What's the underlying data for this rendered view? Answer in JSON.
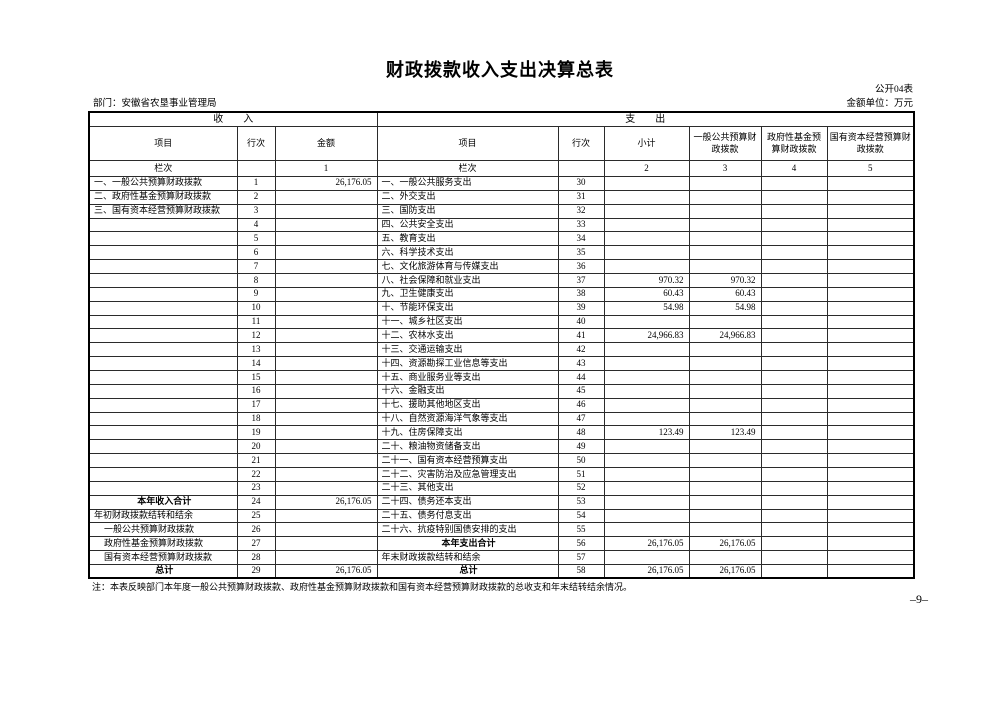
{
  "title": "财政拨款收入支出决算总表",
  "meta": {
    "sheet_label": "公开04表",
    "department": "部门：安徽省农垦事业管理局",
    "unit": "金额单位：万元"
  },
  "table": {
    "income_banner": "收　　入",
    "expense_banner": "支　　出",
    "headers": {
      "item": "项目",
      "line_no": "行次",
      "amount": "金额",
      "subtotal": "小计",
      "general_budget": "一般公共预算财政拨款",
      "gov_fund": "政府性基金预算财政拨款",
      "state_capital": "国有资本经营预算财政拨款"
    },
    "col_index_label": "栏次",
    "col_indices": [
      "1",
      "2",
      "3",
      "4",
      "5"
    ],
    "rows": [
      {
        "l": "一、一般公共预算财政拨款",
        "ln": "1",
        "la": "26,176.05",
        "r": "一、一般公共服务支出",
        "rn": "30",
        "s": "",
        "g": ""
      },
      {
        "l": "二、政府性基金预算财政拨款",
        "ln": "2",
        "la": "",
        "r": "二、外交支出",
        "rn": "31",
        "s": "",
        "g": ""
      },
      {
        "l": "三、国有资本经营预算财政拨款",
        "ln": "3",
        "la": "",
        "r": "三、国防支出",
        "rn": "32",
        "s": "",
        "g": ""
      },
      {
        "l": "",
        "ln": "4",
        "la": "",
        "r": "四、公共安全支出",
        "rn": "33",
        "s": "",
        "g": ""
      },
      {
        "l": "",
        "ln": "5",
        "la": "",
        "r": "五、教育支出",
        "rn": "34",
        "s": "",
        "g": ""
      },
      {
        "l": "",
        "ln": "6",
        "la": "",
        "r": "六、科学技术支出",
        "rn": "35",
        "s": "",
        "g": ""
      },
      {
        "l": "",
        "ln": "7",
        "la": "",
        "r": "七、文化旅游体育与传媒支出",
        "rn": "36",
        "s": "",
        "g": ""
      },
      {
        "l": "",
        "ln": "8",
        "la": "",
        "r": "八、社会保障和就业支出",
        "rn": "37",
        "s": "970.32",
        "g": "970.32"
      },
      {
        "l": "",
        "ln": "9",
        "la": "",
        "r": "九、卫生健康支出",
        "rn": "38",
        "s": "60.43",
        "g": "60.43"
      },
      {
        "l": "",
        "ln": "10",
        "la": "",
        "r": "十、节能环保支出",
        "rn": "39",
        "s": "54.98",
        "g": "54.98"
      },
      {
        "l": "",
        "ln": "11",
        "la": "",
        "r": "十一、城乡社区支出",
        "rn": "40",
        "s": "",
        "g": ""
      },
      {
        "l": "",
        "ln": "12",
        "la": "",
        "r": "十二、农林水支出",
        "rn": "41",
        "s": "24,966.83",
        "g": "24,966.83"
      },
      {
        "l": "",
        "ln": "13",
        "la": "",
        "r": "十三、交通运输支出",
        "rn": "42",
        "s": "",
        "g": ""
      },
      {
        "l": "",
        "ln": "14",
        "la": "",
        "r": "十四、资源勘探工业信息等支出",
        "rn": "43",
        "s": "",
        "g": ""
      },
      {
        "l": "",
        "ln": "15",
        "la": "",
        "r": "十五、商业服务业等支出",
        "rn": "44",
        "s": "",
        "g": ""
      },
      {
        "l": "",
        "ln": "16",
        "la": "",
        "r": "十六、金融支出",
        "rn": "45",
        "s": "",
        "g": ""
      },
      {
        "l": "",
        "ln": "17",
        "la": "",
        "r": "十七、援助其他地区支出",
        "rn": "46",
        "s": "",
        "g": ""
      },
      {
        "l": "",
        "ln": "18",
        "la": "",
        "r": "十八、自然资源海洋气象等支出",
        "rn": "47",
        "s": "",
        "g": ""
      },
      {
        "l": "",
        "ln": "19",
        "la": "",
        "r": "十九、住房保障支出",
        "rn": "48",
        "s": "123.49",
        "g": "123.49"
      },
      {
        "l": "",
        "ln": "20",
        "la": "",
        "r": "二十、粮油物资储备支出",
        "rn": "49",
        "s": "",
        "g": ""
      },
      {
        "l": "",
        "ln": "21",
        "la": "",
        "r": "二十一、国有资本经营预算支出",
        "rn": "50",
        "s": "",
        "g": ""
      },
      {
        "l": "",
        "ln": "22",
        "la": "",
        "r": "二十二、灾害防治及应急管理支出",
        "rn": "51",
        "s": "",
        "g": ""
      },
      {
        "l": "",
        "ln": "23",
        "la": "",
        "r": "二十三、其他支出",
        "rn": "52",
        "s": "",
        "g": ""
      },
      {
        "l": "本年收入合计",
        "lc": "total",
        "ln": "24",
        "la": "26,176.05",
        "r": "二十四、债务还本支出",
        "rn": "53",
        "s": "",
        "g": ""
      },
      {
        "l": "年初财政拨款结转和结余",
        "ln": "25",
        "la": "",
        "r": "二十五、债务付息支出",
        "rn": "54",
        "s": "",
        "g": ""
      },
      {
        "l": "一般公共预算财政拨款",
        "lc": "indent",
        "ln": "26",
        "la": "",
        "r": "二十六、抗疫特别国债安排的支出",
        "rn": "55",
        "s": "",
        "g": ""
      },
      {
        "l": "政府性基金预算财政拨款",
        "lc": "indent",
        "ln": "27",
        "la": "",
        "r": "本年支出合计",
        "rc": "total",
        "rn": "56",
        "s": "26,176.05",
        "g": "26,176.05"
      },
      {
        "l": "国有资本经营预算财政拨款",
        "lc": "indent",
        "ln": "28",
        "la": "",
        "r": "年末财政拨款结转和结余",
        "rn": "57",
        "s": "",
        "g": ""
      },
      {
        "l": "总计",
        "lc": "total",
        "ln": "29",
        "la": "26,176.05",
        "r": "总计",
        "rc": "total",
        "rn": "58",
        "s": "26,176.05",
        "g": "26,176.05"
      }
    ]
  },
  "note": "注：本表反映部门本年度一般公共预算财政拨款、政府性基金预算财政拨款和国有资本经营预算财政拨款的总收支和年末结转结余情况。",
  "page_number": "–9–"
}
